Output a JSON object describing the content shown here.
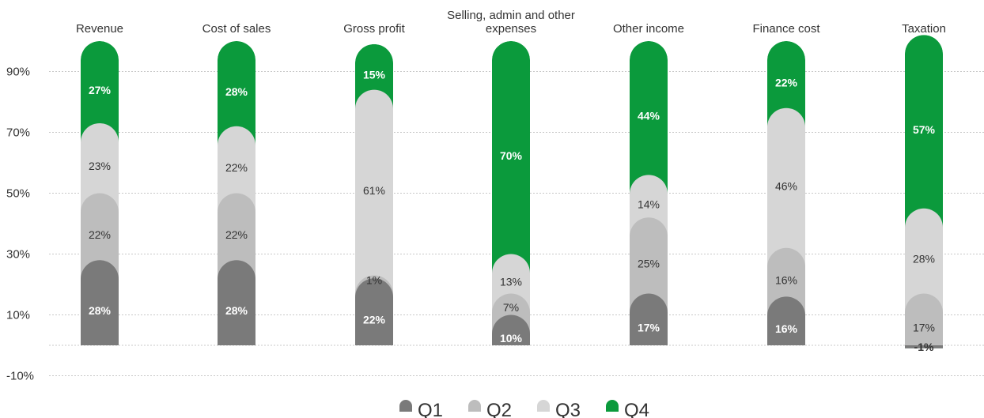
{
  "chart_data": {
    "type": "bar",
    "stacked": true,
    "orientation": "vertical",
    "categories": [
      [
        "Revenue"
      ],
      [
        "Cost of sales"
      ],
      [
        "Gross profit"
      ],
      [
        "Selling, admin and other",
        "expenses"
      ],
      [
        "Other income"
      ],
      [
        "Finance cost"
      ],
      [
        "Taxation"
      ]
    ],
    "series": [
      {
        "name": "Q1",
        "color": "#7a7a7a",
        "values": [
          28,
          28,
          22,
          10,
          17,
          16,
          -1
        ],
        "labels": [
          "28%",
          "28%",
          "22%",
          "10%",
          "17%",
          "16%",
          "-1%"
        ],
        "label_style": "bold-white"
      },
      {
        "name": "Q2",
        "color": "#bdbdbd",
        "values": [
          22,
          22,
          1,
          7,
          25,
          16,
          17
        ],
        "labels": [
          "22%",
          "22%",
          "1%",
          "7%",
          "25%",
          "16%",
          "17%"
        ],
        "label_style": "normal-dark"
      },
      {
        "name": "Q3",
        "color": "#d6d6d6",
        "values": [
          23,
          22,
          61,
          13,
          14,
          46,
          28
        ],
        "labels": [
          "23%",
          "22%",
          "61%",
          "13%",
          "14%",
          "46%",
          "28%"
        ],
        "label_style": "normal-dark"
      },
      {
        "name": "Q4",
        "color": "#0b9a3c",
        "values": [
          27,
          28,
          15,
          70,
          44,
          22,
          57
        ],
        "labels": [
          "27%",
          "28%",
          "15%",
          "70%",
          "44%",
          "22%",
          "57%"
        ],
        "label_style": "bold-white"
      }
    ],
    "yticks": [
      "-10%",
      "10%",
      "30%",
      "50%",
      "70%",
      "90%"
    ],
    "ytick_values": [
      -10,
      10,
      30,
      50,
      70,
      90
    ],
    "ylim": [
      -15,
      100
    ],
    "grid": true,
    "legend_position": "bottom-center",
    "title": "",
    "xlabel": "",
    "ylabel": ""
  }
}
